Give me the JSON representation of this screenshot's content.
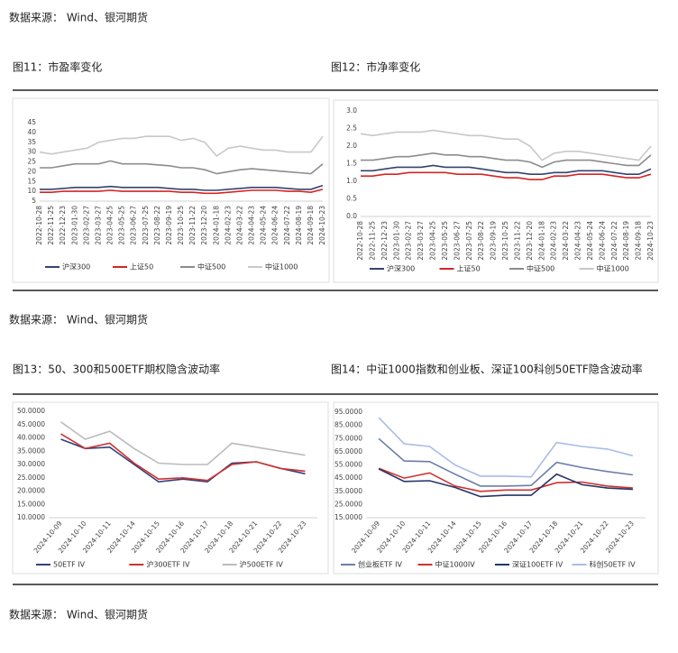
{
  "source_notes": [
    "数据来源：  Wind、银河期货",
    "数据来源：  Wind、银河期货",
    "数据来源：  Wind、银河期货"
  ],
  "chart_data": [
    {
      "type": "line",
      "title": "图11：市盈率变化",
      "categories": [
        "2022-10-28",
        "2022-11-25",
        "2022-12-23",
        "2023-01-30",
        "2023-02-27",
        "2023-03-27",
        "2023-04-25",
        "2023-05-25",
        "2023-06-27",
        "2023-07-25",
        "2023-08-22",
        "2023-09-19",
        "2023-10-25",
        "2023-11-22",
        "2023-12-20",
        "2024-01-18",
        "2024-02-23",
        "2024-03-22",
        "2024-04-23",
        "2024-05-24",
        "2024-06-24",
        "2024-07-22",
        "2024-08-19",
        "2024-09-18",
        "2024-10-23"
      ],
      "ylim": [
        5,
        45
      ],
      "yticks": [
        5,
        10,
        15,
        20,
        25,
        30,
        35,
        40,
        45
      ],
      "series": [
        {
          "name": "沪深300",
          "color": "#33446e",
          "values": [
            11,
            11,
            11.5,
            12,
            12,
            12,
            12.5,
            12,
            12,
            12,
            12,
            11.5,
            11,
            11,
            10.5,
            10.5,
            11,
            11.5,
            12,
            12,
            12,
            11.5,
            11,
            11,
            13
          ]
        },
        {
          "name": "上证50",
          "color": "#d62424",
          "values": [
            9.5,
            9.5,
            10,
            10,
            10,
            10,
            10.5,
            10,
            10,
            10,
            10,
            10,
            9.5,
            9.5,
            9,
            9,
            9.5,
            10,
            10.5,
            10.5,
            10.5,
            10,
            10,
            9.5,
            11
          ]
        },
        {
          "name": "中证500",
          "color": "#8c8c8c",
          "values": [
            22,
            22,
            23,
            24,
            24,
            24,
            25.5,
            24,
            24,
            24,
            23.5,
            23,
            22,
            22,
            21,
            19,
            20,
            21,
            21.5,
            21,
            20.5,
            20,
            19.5,
            19,
            24
          ]
        },
        {
          "name": "中证1000",
          "color": "#c8c8c8",
          "values": [
            30,
            29,
            30,
            31,
            32,
            35,
            36,
            37,
            37,
            38,
            38,
            38,
            36,
            37,
            35,
            28,
            32,
            33,
            32,
            31,
            31,
            30,
            30,
            30,
            38
          ]
        }
      ]
    },
    {
      "type": "line",
      "title": "图12：市净率变化",
      "categories": [
        "2022-10-28",
        "2022-11-25",
        "2022-12-23",
        "2023-01-30",
        "2023-02-27",
        "2023-03-27",
        "2023-04-25",
        "2023-05-25",
        "2023-06-27",
        "2023-07-25",
        "2023-08-22",
        "2023-09-19",
        "2023-10-25",
        "2023-11-22",
        "2023-12-20",
        "2024-01-18",
        "2024-02-23",
        "2024-03-22",
        "2024-04-23",
        "2024-05-24",
        "2024-06-24",
        "2024-07-22",
        "2024-08-19",
        "2024-09-18",
        "2024-10-23"
      ],
      "ylim": [
        0,
        3
      ],
      "yticks": [
        {
          "value": 0,
          "label": "0.0"
        },
        0.5,
        {
          "value": 1,
          "label": "1.0"
        },
        1.5,
        {
          "value": 2,
          "label": "2.0"
        },
        2.5,
        {
          "value": 3,
          "label": "3.0"
        }
      ],
      "series": [
        {
          "name": "沪深300",
          "color": "#33446e",
          "values": [
            1.3,
            1.3,
            1.35,
            1.4,
            1.4,
            1.4,
            1.45,
            1.4,
            1.4,
            1.4,
            1.35,
            1.3,
            1.25,
            1.25,
            1.2,
            1.2,
            1.25,
            1.25,
            1.3,
            1.3,
            1.3,
            1.25,
            1.2,
            1.2,
            1.35
          ]
        },
        {
          "name": "上证50",
          "color": "#d62424",
          "values": [
            1.15,
            1.15,
            1.2,
            1.2,
            1.25,
            1.25,
            1.25,
            1.25,
            1.2,
            1.2,
            1.2,
            1.15,
            1.1,
            1.1,
            1.05,
            1.05,
            1.15,
            1.15,
            1.2,
            1.2,
            1.2,
            1.15,
            1.1,
            1.1,
            1.2
          ]
        },
        {
          "name": "中证500",
          "color": "#8c8c8c",
          "values": [
            1.6,
            1.6,
            1.65,
            1.7,
            1.7,
            1.75,
            1.8,
            1.75,
            1.75,
            1.7,
            1.7,
            1.65,
            1.6,
            1.6,
            1.55,
            1.4,
            1.55,
            1.6,
            1.6,
            1.6,
            1.55,
            1.5,
            1.45,
            1.45,
            1.75
          ]
        },
        {
          "name": "中证1000",
          "color": "#c8c8c8",
          "values": [
            2.35,
            2.3,
            2.35,
            2.4,
            2.4,
            2.4,
            2.45,
            2.4,
            2.35,
            2.3,
            2.3,
            2.25,
            2.2,
            2.2,
            2.0,
            1.6,
            1.8,
            1.85,
            1.85,
            1.8,
            1.75,
            1.7,
            1.65,
            1.6,
            2.0
          ]
        }
      ]
    },
    {
      "type": "line",
      "title": "图13：50、300和500ETF期权隐含波动率",
      "categories": [
        "2024-10-09",
        "2024-10-10",
        "2024-10-11",
        "2024-10-14",
        "2024-10-15",
        "2024-10-16",
        "2024-10-17",
        "2024-10-18",
        "2024-10-21",
        "2024-10-22",
        "2024-10-23"
      ],
      "ylim": [
        10,
        50
      ],
      "yticks": [
        {
          "value": 10,
          "label": "10.0000"
        },
        {
          "value": 15,
          "label": "15.0000"
        },
        {
          "value": 20,
          "label": "20.0000"
        },
        {
          "value": 25,
          "label": "25.0000"
        },
        {
          "value": 30,
          "label": "30.0000"
        },
        {
          "value": 35,
          "label": "35.0000"
        },
        {
          "value": 40,
          "label": "40.0000"
        },
        {
          "value": 45,
          "label": "45.0000"
        },
        {
          "value": 50,
          "label": "50.0000"
        }
      ],
      "series": [
        {
          "name": "50ETF IV",
          "color": "#34427a",
          "values": [
            39.5,
            36,
            36.5,
            30,
            23.5,
            24.5,
            23.5,
            30.5,
            31,
            28.5,
            26.5
          ]
        },
        {
          "name": "沪300ETF IV",
          "color": "#d03030",
          "values": [
            41.5,
            36,
            38,
            30.5,
            24.5,
            25,
            24,
            30,
            31,
            28.5,
            27.5
          ]
        },
        {
          "name": "沪500ETF IV",
          "color": "#bbbbbb",
          "values": [
            46,
            39.5,
            42.5,
            36,
            30.5,
            30,
            30,
            38,
            36.5,
            35,
            33.5
          ]
        }
      ]
    },
    {
      "type": "line",
      "title": "图14：中证1000指数和创业板、深证100科创50ETF隐含波动率",
      "categories": [
        "2024-10-09",
        "2024-10-10",
        "2024-10-11",
        "2024-10-14",
        "2024-10-15",
        "2024-10-16",
        "2024-10-17",
        "2024-10-18",
        "2024-10-21",
        "2024-10-22",
        "2024-10-23"
      ],
      "ylim": [
        15,
        95
      ],
      "yticks": [
        {
          "value": 15,
          "label": "15.0000"
        },
        {
          "value": 25,
          "label": "25.0000"
        },
        {
          "value": 35,
          "label": "35.0000"
        },
        {
          "value": 45,
          "label": "45.0000"
        },
        {
          "value": 55,
          "label": "55.0000"
        },
        {
          "value": 65,
          "label": "65.0000"
        },
        {
          "value": 75,
          "label": "75.0000"
        },
        {
          "value": 85,
          "label": "85.0000"
        },
        {
          "value": 95,
          "label": "95.0000"
        }
      ],
      "series": [
        {
          "name": "创业板ETF IV",
          "color": "#6b7ea8",
          "values": [
            75,
            58,
            57.5,
            48,
            39,
            39,
            39.5,
            57,
            53,
            50,
            47.5
          ]
        },
        {
          "name": "中证1000IV",
          "color": "#d03030",
          "values": [
            52.5,
            45,
            49,
            39,
            35,
            36,
            36,
            41.5,
            42,
            39,
            37.5
          ]
        },
        {
          "name": "深证100ETF IV",
          "color": "#263468",
          "values": [
            52,
            42.5,
            43,
            38,
            31,
            32,
            32,
            48,
            40,
            37.5,
            36.5
          ]
        },
        {
          "name": "科创50ETF IV",
          "color": "#a9bce8",
          "values": [
            91,
            71,
            69,
            55,
            46.5,
            46.5,
            46,
            72,
            69,
            67,
            62
          ]
        }
      ]
    }
  ]
}
